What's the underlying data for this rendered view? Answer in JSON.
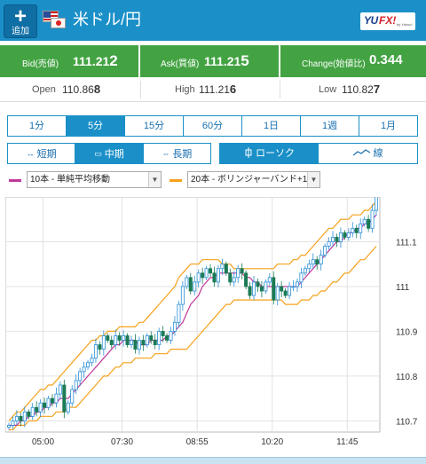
{
  "header": {
    "add_button_label": "追加",
    "pair_title": "米ドル/円",
    "logo_text_a": "YU",
    "logo_text_b": "FX!",
    "logo_sub": "by Yahoo!",
    "bar_color": "#1b90c8"
  },
  "rates": {
    "bid": {
      "label": "Bid(売値)",
      "value_main": "111.21",
      "value_pip": "2"
    },
    "ask": {
      "label": "Ask(買値)",
      "value_main": "111.21",
      "value_pip": "5"
    },
    "change": {
      "label": "Change(始値比)",
      "value": "0.344"
    },
    "color": "#43a343"
  },
  "ohl": {
    "open": {
      "label": "Open",
      "value_main": "110.86",
      "value_pip": "8"
    },
    "high": {
      "label": "High",
      "value_main": "111.21",
      "value_pip": "6"
    },
    "low": {
      "label": "Low",
      "value_main": "110.82",
      "value_pip": "7"
    }
  },
  "periods": [
    "1分",
    "5分",
    "15分",
    "60分",
    "1日",
    "1週",
    "1月"
  ],
  "active_period": "5分",
  "terms": [
    {
      "label": "短期",
      "icon": "↔"
    },
    {
      "label": "中期",
      "icon": "▭"
    },
    {
      "label": "長期",
      "icon": "⇔"
    }
  ],
  "chart_types": [
    {
      "label": "ローソク",
      "icon": "candle-icon"
    },
    {
      "label": "線",
      "icon": "line-icon"
    }
  ],
  "indicators": [
    {
      "label": "10本 - 単純平均移動",
      "color": "#c0389c"
    },
    {
      "label": "20本 - ボリンジャーバンド+1",
      "color": "#f5a11a"
    }
  ],
  "chart_data": {
    "type": "candlestick",
    "x_ticks": [
      "05:00",
      "07:30",
      "08:55",
      "10:20",
      "11:45"
    ],
    "y_ticks": [
      110.7,
      110.8,
      110.9,
      111,
      111.1
    ],
    "ylim": [
      110.675,
      111.2
    ],
    "grid": true,
    "close": [
      110.69,
      110.7,
      110.71,
      110.7,
      110.72,
      110.71,
      110.73,
      110.72,
      110.74,
      110.73,
      110.75,
      110.74,
      110.76,
      110.78,
      110.72,
      110.74,
      110.77,
      110.79,
      110.81,
      110.82,
      110.83,
      110.84,
      110.87,
      110.86,
      110.89,
      110.88,
      110.87,
      110.89,
      110.88,
      110.89,
      110.87,
      110.88,
      110.86,
      110.88,
      110.87,
      110.89,
      110.88,
      110.87,
      110.9,
      110.89,
      110.88,
      110.9,
      110.92,
      110.96,
      111.0,
      111.02,
      110.99,
      111.01,
      111.03,
      111.02,
      111.04,
      111.03,
      111.01,
      111.04,
      111.05,
      111.03,
      111.01,
      111.02,
      111.04,
      111.03,
      111.0,
      110.98,
      111.01,
      111.0,
      110.99,
      111.01,
      111.02,
      110.97,
      111.0,
      110.99,
      110.98,
      111.0,
      111.0,
      111.01,
      111.03,
      111.04,
      111.05,
      111.06,
      111.05,
      111.07,
      111.09,
      111.1,
      111.11,
      111.1,
      111.12,
      111.11,
      111.12,
      111.13,
      111.12,
      111.14,
      111.15,
      111.13,
      111.17,
      111.21
    ],
    "ma10": [
      110.69,
      110.69,
      110.69,
      110.7,
      110.7,
      110.71,
      110.71,
      110.72,
      110.72,
      110.73,
      110.73,
      110.74,
      110.74,
      110.75,
      110.75,
      110.75,
      110.76,
      110.77,
      110.78,
      110.79,
      110.8,
      110.81,
      110.82,
      110.83,
      110.84,
      110.85,
      110.86,
      110.87,
      110.87,
      110.88,
      110.88,
      110.88,
      110.88,
      110.87,
      110.87,
      110.87,
      110.88,
      110.88,
      110.88,
      110.88,
      110.89,
      110.89,
      110.9,
      110.91,
      110.92,
      110.94,
      110.96,
      110.97,
      110.98,
      111.0,
      111.01,
      111.02,
      111.02,
      111.03,
      111.03,
      111.03,
      111.03,
      111.03,
      111.03,
      111.03,
      111.02,
      111.02,
      111.01,
      111.01,
      111.0,
      111.0,
      111.0,
      111.0,
      111.0,
      111.0,
      111.0,
      111.0,
      111.0,
      111.0,
      111.01,
      111.02,
      111.03,
      111.04,
      111.05,
      111.06,
      111.07,
      111.08,
      111.09,
      111.1,
      111.1,
      111.11,
      111.12,
      111.12,
      111.13,
      111.13,
      111.14,
      111.14,
      111.15,
      111.16
    ],
    "bb_upper": [
      110.7,
      110.71,
      110.72,
      110.72,
      110.73,
      110.74,
      110.75,
      110.76,
      110.77,
      110.77,
      110.78,
      110.78,
      110.79,
      110.8,
      110.81,
      110.82,
      110.83,
      110.84,
      110.85,
      110.86,
      110.87,
      110.88,
      110.88,
      110.89,
      110.89,
      110.9,
      110.9,
      110.9,
      110.91,
      110.91,
      110.91,
      110.91,
      110.91,
      110.92,
      110.92,
      110.93,
      110.94,
      110.95,
      110.96,
      110.97,
      110.98,
      110.99,
      111.0,
      111.02,
      111.03,
      111.04,
      111.05,
      111.05,
      111.05,
      111.06,
      111.06,
      111.06,
      111.06,
      111.06,
      111.05,
      111.05,
      111.05,
      111.04,
      111.04,
      111.04,
      111.04,
      111.04,
      111.04,
      111.04,
      111.04,
      111.04,
      111.04,
      111.04,
      111.05,
      111.05,
      111.05,
      111.05,
      111.06,
      111.06,
      111.07,
      111.07,
      111.08,
      111.09,
      111.1,
      111.11,
      111.12,
      111.13,
      111.13,
      111.14,
      111.15,
      111.15,
      111.15,
      111.16,
      111.16,
      111.16,
      111.17,
      111.17,
      111.18,
      111.19
    ],
    "bb_lower": [
      110.68,
      110.68,
      110.69,
      110.69,
      110.69,
      110.7,
      110.7,
      110.7,
      110.71,
      110.71,
      110.71,
      110.71,
      110.72,
      110.72,
      110.72,
      110.73,
      110.73,
      110.73,
      110.74,
      110.75,
      110.76,
      110.77,
      110.78,
      110.79,
      110.8,
      110.8,
      110.81,
      110.82,
      110.82,
      110.83,
      110.83,
      110.83,
      110.84,
      110.84,
      110.84,
      110.84,
      110.84,
      110.85,
      110.85,
      110.85,
      110.85,
      110.86,
      110.86,
      110.86,
      110.86,
      110.86,
      110.87,
      110.88,
      110.89,
      110.9,
      110.91,
      110.92,
      110.93,
      110.94,
      110.95,
      110.96,
      110.96,
      110.97,
      110.97,
      110.97,
      110.97,
      110.97,
      110.97,
      110.97,
      110.97,
      110.97,
      110.97,
      110.97,
      110.97,
      110.97,
      110.96,
      110.96,
      110.96,
      110.96,
      110.97,
      110.97,
      110.97,
      110.98,
      110.98,
      110.99,
      110.99,
      111.0,
      111.01,
      111.01,
      111.02,
      111.03,
      111.03,
      111.04,
      111.05,
      111.06,
      111.06,
      111.07,
      111.08,
      111.09
    ],
    "up_color": "#2a8fd6",
    "down_color": "#1a7a55",
    "ma_color": "#c0389c",
    "bb_color": "#f5a11a"
  }
}
